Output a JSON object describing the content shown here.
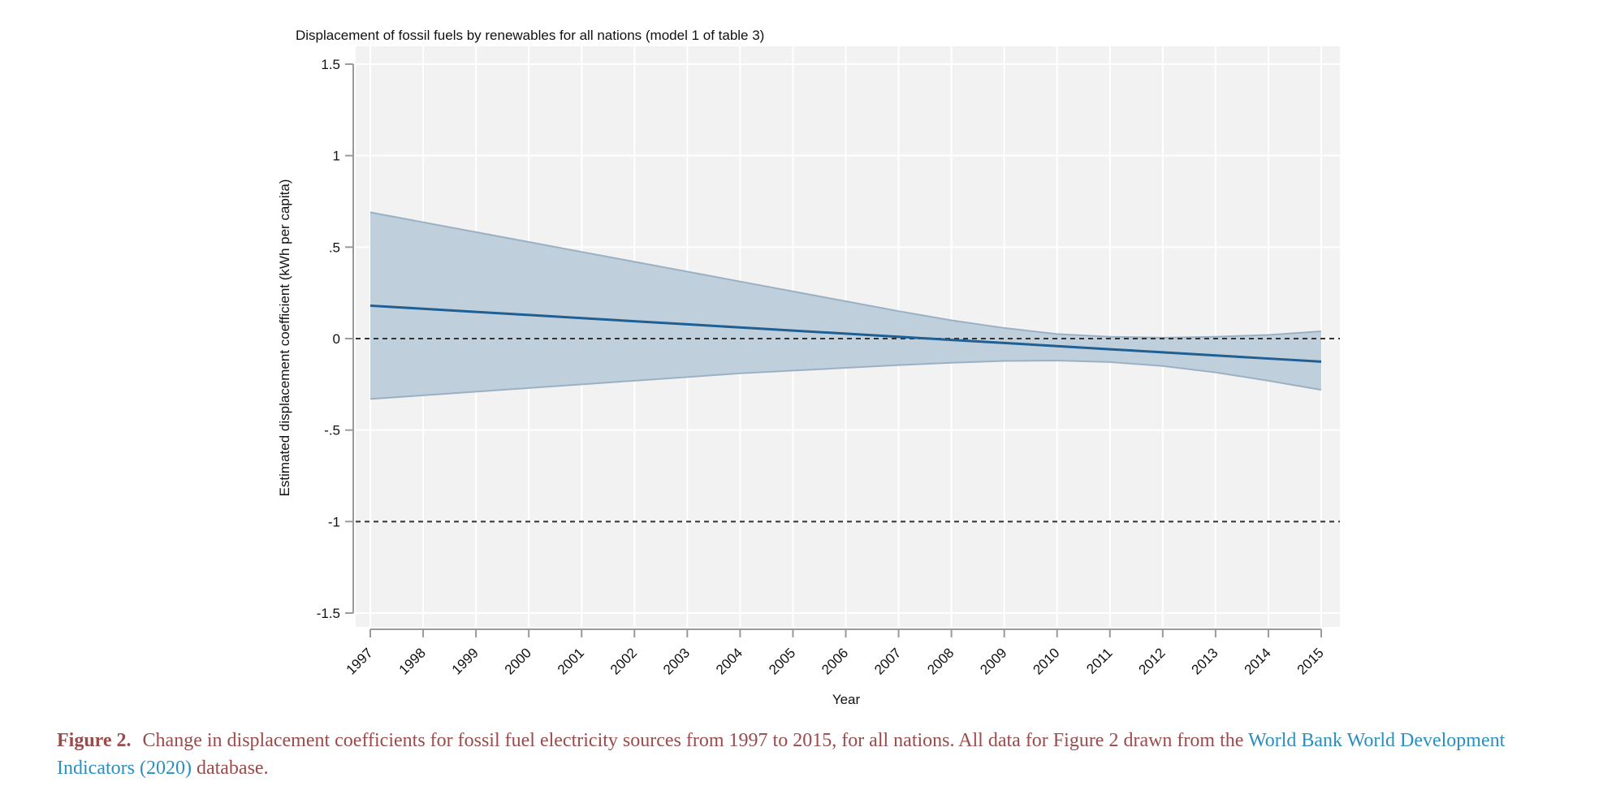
{
  "chart_data": {
    "type": "line",
    "title": "Displacement of fossil fuels by renewables for all nations (model 1 of table 3)",
    "xlabel": "Year",
    "ylabel": "Estimated displacement coefficient (kWh per capita)",
    "x": [
      1997,
      1998,
      1999,
      2000,
      2001,
      2002,
      2003,
      2004,
      2005,
      2006,
      2007,
      2008,
      2009,
      2010,
      2011,
      2012,
      2013,
      2014,
      2015
    ],
    "xtick_labels": [
      "1997",
      "1998",
      "1999",
      "2000",
      "2001",
      "2002",
      "2003",
      "2004",
      "2005",
      "2006",
      "2007",
      "2008",
      "2009",
      "2010",
      "2011",
      "2012",
      "2013",
      "2014",
      "2015"
    ],
    "xlim": [
      1997,
      2015
    ],
    "ylim": [
      -1.5,
      1.5
    ],
    "yticks": [
      -1.5,
      -1,
      -0.5,
      0,
      0.5,
      1,
      1.5
    ],
    "ytick_labels": [
      "-1.5",
      "-1",
      "-.5",
      "0",
      ".5",
      "1",
      "1.5"
    ],
    "series": [
      {
        "values": [
          0.18,
          0.163,
          0.146,
          0.129,
          0.112,
          0.095,
          0.078,
          0.061,
          0.044,
          0.027,
          0.01,
          -0.007,
          -0.024,
          -0.041,
          -0.058,
          -0.075,
          -0.092,
          -0.109,
          -0.126
        ],
        "lower": [
          -0.33,
          -0.31,
          -0.29,
          -0.27,
          -0.25,
          -0.23,
          -0.21,
          -0.19,
          -0.175,
          -0.16,
          -0.145,
          -0.132,
          -0.122,
          -0.12,
          -0.128,
          -0.15,
          -0.185,
          -0.23,
          -0.28
        ],
        "upper": [
          0.69,
          0.636,
          0.582,
          0.528,
          0.474,
          0.42,
          0.366,
          0.312,
          0.258,
          0.204,
          0.15,
          0.1,
          0.058,
          0.025,
          0.01,
          0.005,
          0.01,
          0.02,
          0.04
        ]
      }
    ],
    "reference_lines": [
      0,
      -1
    ],
    "grid": true,
    "colors": {
      "plot_background": "#f2f2f2",
      "grid": "#ffffff",
      "band_fill": "#bfcfdb",
      "band_edge": "#9bb1c3",
      "line": "#1f5f94",
      "reference": "#333333"
    }
  },
  "caption": {
    "label": "Figure 2.",
    "text_before": "Change in displacement coefficients for fossil fuel electricity sources from 1997 to 2015, for all nations. All data for Figure 2 drawn from the",
    "link_text": "World Bank World Development Indicators (2020)",
    "text_after": "database."
  }
}
